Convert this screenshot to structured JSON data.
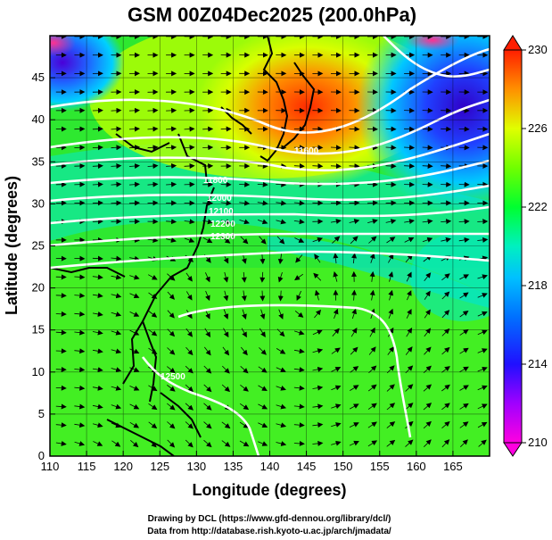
{
  "title": "GSM 00Z04Dec2025 (200.0hPa)",
  "x_axis": {
    "label": "Longitude (degrees)",
    "ticks": [
      "110",
      "115",
      "120",
      "125",
      "130",
      "135",
      "140",
      "145",
      "150",
      "155",
      "160",
      "165"
    ],
    "range": [
      110,
      170
    ]
  },
  "y_axis": {
    "label": "Latitude  (degrees)",
    "ticks": [
      "0",
      "5",
      "10",
      "15",
      "20",
      "25",
      "30",
      "35",
      "40",
      "45"
    ],
    "range": [
      0,
      50
    ]
  },
  "colorbar": {
    "ticks": [
      "210",
      "214",
      "218",
      "222",
      "226",
      "230"
    ],
    "range": [
      210,
      230
    ],
    "colors": [
      "#ff00ff",
      "#8800ff",
      "#0000ff",
      "#00a0ff",
      "#00ffd0",
      "#00ff40",
      "#80ff00",
      "#e8ff00",
      "#ffb000",
      "#ff3000"
    ]
  },
  "contour_labels": [
    "11800",
    "12000",
    "12100",
    "12200",
    "12300",
    "12500",
    "11600"
  ],
  "credits": {
    "line1": "Drawing by DCL (https://www.gfd-dennou.org/library/dcl/)",
    "line2": "Data from http://database.rish.kyoto-u.ac.jp/arch/jmadata/"
  }
}
